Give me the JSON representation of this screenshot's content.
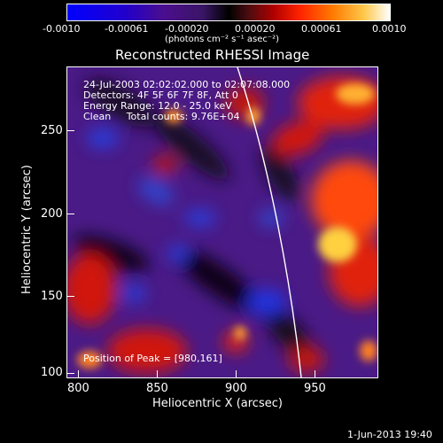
{
  "colorbar": {
    "ticks": [
      "-0.0010",
      "-0.00061",
      "-0.00020",
      "0.00020",
      "0.00061",
      "0.0010"
    ],
    "units": "(photons cm⁻² s⁻¹ asec⁻²)"
  },
  "title": "Reconstructed RHESSI Image",
  "info": {
    "line1": "24-Jul-2003 02:02:02.000 to 02:07:08.000",
    "line2": "Detectors: 4F 5F 6F 7F 8F, Att 0",
    "line3": "Energy Range: 12.0 - 25.0 keV",
    "line4": "Clean     Total counts: 9.76E+04"
  },
  "peak": "Position of Peak = [980,161]",
  "axes": {
    "xlabel": "Heliocentric X (arcsec)",
    "ylabel": "Heliocentric Y (arcsec)",
    "xticks": [
      "800",
      "850",
      "900",
      "950"
    ],
    "yticks": [
      "250",
      "200",
      "150",
      "100"
    ]
  },
  "timestamp": "1-Jun-2013 19:40",
  "colors": {
    "background": "#000000",
    "limb": "#ffffff",
    "low": "#0000ff",
    "high": "#ffffff"
  }
}
